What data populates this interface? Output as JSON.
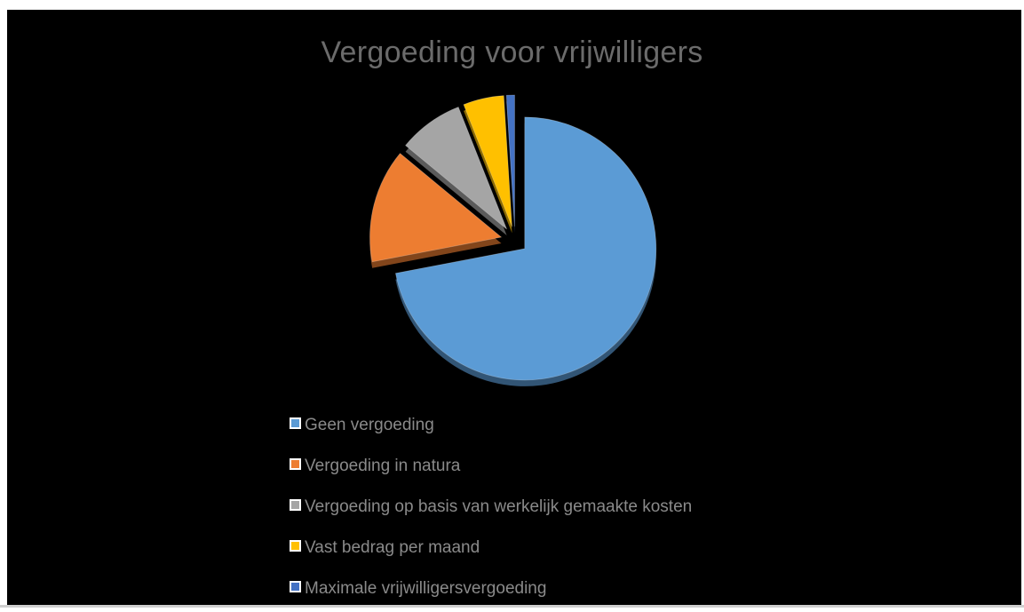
{
  "chart_data": {
    "type": "pie",
    "title": "Vergoeding voor vrijwilligers",
    "legend_position": "bottom",
    "exploded": true,
    "style": "3d",
    "slices": [
      {
        "label": "Geen vergoeding",
        "value": 72,
        "color": "#5b9bd5"
      },
      {
        "label": "Vergoeding in natura",
        "value": 14,
        "color": "#ed7d31"
      },
      {
        "label": "Vergoeding op basis van werkelijk gemaakte kosten",
        "value": 8,
        "color": "#a5a5a5"
      },
      {
        "label": "Vast bedrag per maand",
        "value": 5,
        "color": "#ffc000"
      },
      {
        "label": "Maximale vrijwilligersvergoeding",
        "value": 1,
        "color": "#4472c4"
      }
    ]
  }
}
